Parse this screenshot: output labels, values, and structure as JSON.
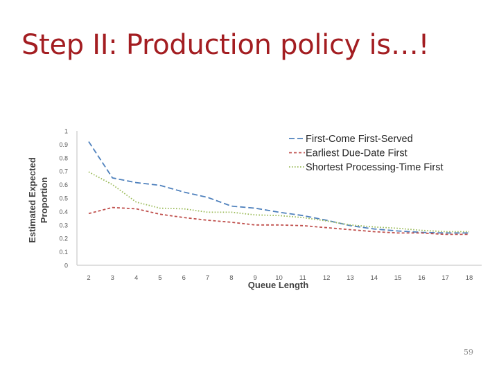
{
  "slide": {
    "title": "Step II: Production policy is…!",
    "page_number": "59"
  },
  "chart_data": {
    "type": "line",
    "title": "",
    "xlabel": "Queue Length",
    "ylabel": [
      "Estimated Expected",
      "Proportion"
    ],
    "x": [
      2,
      3,
      4,
      5,
      6,
      7,
      8,
      9,
      10,
      11,
      12,
      13,
      14,
      15,
      16,
      17,
      18
    ],
    "xlim": [
      2,
      18
    ],
    "ylim": [
      0,
      1
    ],
    "yticks": [
      "0",
      "0.1",
      "0.2",
      "0.3",
      "0.4",
      "0.5",
      "0.6",
      "0.7",
      "0.8",
      "0.9",
      "1"
    ],
    "grid": false,
    "legend_position": "top-right",
    "series": [
      {
        "name": "First-Come First-Served",
        "color": "#4f81bd",
        "dash": "long-dash",
        "values": [
          0.92,
          0.65,
          0.615,
          0.595,
          0.545,
          0.505,
          0.44,
          0.425,
          0.395,
          0.37,
          0.335,
          0.295,
          0.27,
          0.255,
          0.245,
          0.24,
          0.24
        ]
      },
      {
        "name": "Earliest Due-Date First",
        "color": "#c0504d",
        "dash": "short-dash",
        "values": [
          0.385,
          0.43,
          0.42,
          0.38,
          0.355,
          0.335,
          0.32,
          0.3,
          0.3,
          0.295,
          0.28,
          0.265,
          0.25,
          0.24,
          0.24,
          0.23,
          0.23
        ]
      },
      {
        "name": "Shortest Processing-Time First",
        "color": "#9bbb59",
        "dash": "dotted",
        "values": [
          0.695,
          0.6,
          0.47,
          0.425,
          0.42,
          0.395,
          0.395,
          0.375,
          0.37,
          0.355,
          0.33,
          0.3,
          0.285,
          0.275,
          0.26,
          0.25,
          0.25
        ]
      }
    ]
  }
}
